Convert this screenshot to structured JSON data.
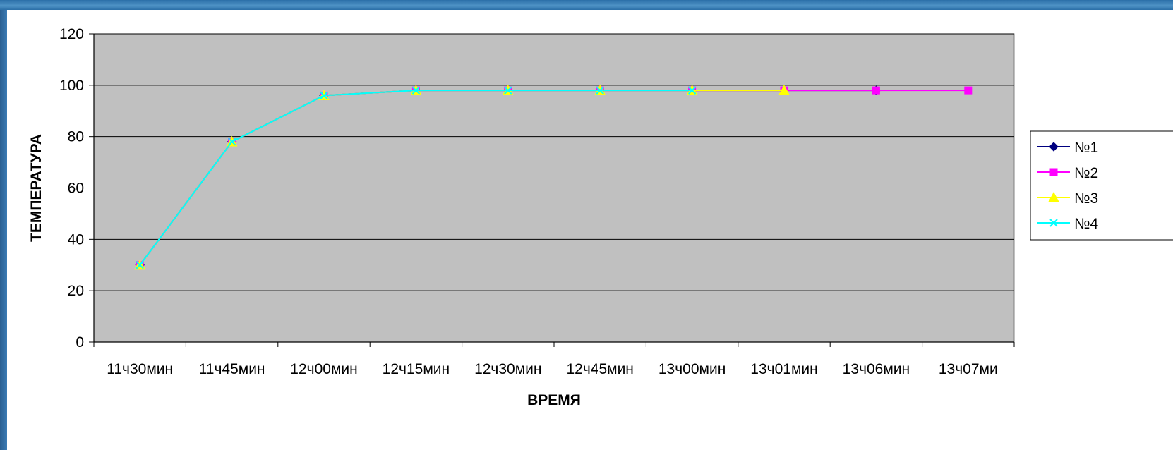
{
  "chart_data": {
    "type": "line",
    "xlabel": "ВРЕМЯ",
    "ylabel": "ТЕМПЕРАТУРА",
    "categories": [
      "11ч30мин",
      "11ч45мин",
      "12ч00мин",
      "12ч15мин",
      "12ч30мин",
      "12ч45мин",
      "13ч00мин",
      "13ч01мин",
      "13ч06мин",
      "13ч07ми"
    ],
    "ylim": [
      0,
      120
    ],
    "yticks": [
      "0",
      "20",
      "40",
      "60",
      "80",
      "100",
      "120"
    ],
    "grid": true,
    "background": "#c0c0c0",
    "legend_position": "right",
    "series": [
      {
        "name": "№1",
        "color": "#000080",
        "marker": "diamond",
        "values": [
          30,
          78,
          96,
          98,
          98,
          98,
          98,
          98,
          98,
          null
        ]
      },
      {
        "name": "№2",
        "color": "#ff00ff",
        "marker": "square",
        "values": [
          30,
          78,
          96,
          98,
          98,
          98,
          98,
          98,
          98,
          98
        ]
      },
      {
        "name": "№3",
        "color": "#ffff00",
        "marker": "triangle",
        "values": [
          30,
          78,
          96,
          98,
          98,
          98,
          98,
          98,
          null,
          null
        ]
      },
      {
        "name": "№4",
        "color": "#00ffff",
        "marker": "x",
        "values": [
          30,
          78,
          96,
          98,
          98,
          98,
          98,
          null,
          null,
          null
        ]
      }
    ]
  }
}
